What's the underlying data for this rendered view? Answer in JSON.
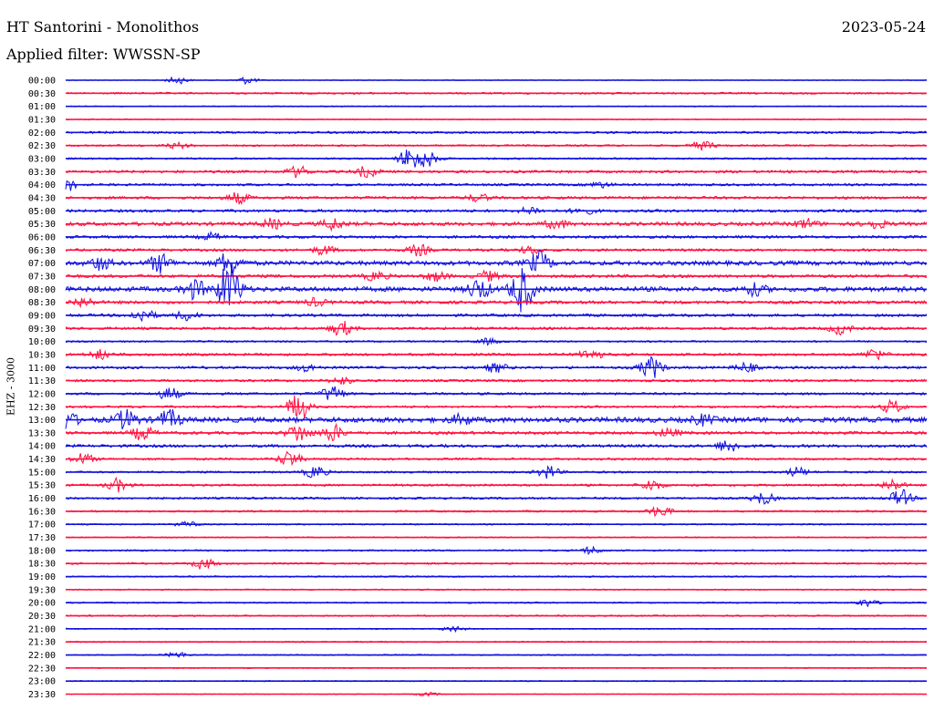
{
  "header": {
    "title": "HT Santorini - Monolithos",
    "date": "2023-05-24",
    "filter": "Applied filter: WWSSN-SP"
  },
  "axis": {
    "channel_label": "EHZ - 3000"
  },
  "colors": {
    "odd": "#1010e0",
    "even": "#ff1040",
    "background": "#ffffff"
  },
  "chart_data": {
    "type": "line",
    "title": "HT Santorini - Monolithos",
    "ylabel": "EHZ - 3000",
    "y_ticks": [
      "00:00",
      "00:30",
      "01:00",
      "01:30",
      "02:00",
      "02:30",
      "03:00",
      "03:30",
      "04:00",
      "04:30",
      "05:00",
      "05:30",
      "06:00",
      "06:30",
      "07:00",
      "07:30",
      "08:00",
      "08:30",
      "09:00",
      "09:30",
      "10:00",
      "10:30",
      "11:00",
      "11:30",
      "12:00",
      "12:30",
      "13:00",
      "13:30",
      "14:00",
      "14:30",
      "15:00",
      "15:30",
      "16:00",
      "16:30",
      "17:00",
      "17:30",
      "18:00",
      "18:30",
      "19:00",
      "19:30",
      "20:00",
      "20:30",
      "21:00",
      "21:30",
      "22:00",
      "22:30",
      "23:00",
      "23:30"
    ],
    "series": [
      {
        "label": "00:00",
        "noise": 0.4,
        "events": [
          [
            0.13,
            4
          ],
          [
            0.21,
            4
          ]
        ]
      },
      {
        "label": "00:30",
        "noise": 1.0,
        "events": []
      },
      {
        "label": "01:00",
        "noise": 0.6,
        "events": []
      },
      {
        "label": "01:30",
        "noise": 0.6,
        "events": []
      },
      {
        "label": "02:00",
        "noise": 1.2,
        "events": []
      },
      {
        "label": "02:30",
        "noise": 1.0,
        "events": [
          [
            0.13,
            3
          ],
          [
            0.74,
            5
          ]
        ]
      },
      {
        "label": "03:00",
        "noise": 1.0,
        "events": [
          [
            0.4,
            12
          ],
          [
            0.42,
            8
          ]
        ]
      },
      {
        "label": "03:30",
        "noise": 1.4,
        "events": [
          [
            0.27,
            6
          ],
          [
            0.35,
            6
          ]
        ]
      },
      {
        "label": "04:00",
        "noise": 1.3,
        "events": [
          [
            0.0,
            7
          ],
          [
            0.62,
            3
          ]
        ]
      },
      {
        "label": "04:30",
        "noise": 1.5,
        "events": [
          [
            0.2,
            6
          ],
          [
            0.48,
            4
          ]
        ]
      },
      {
        "label": "05:00",
        "noise": 1.5,
        "events": [
          [
            0.54,
            4
          ],
          [
            0.6,
            4
          ]
        ]
      },
      {
        "label": "05:30",
        "noise": 2.0,
        "events": [
          [
            0.24,
            5
          ],
          [
            0.31,
            6
          ],
          [
            0.57,
            5
          ],
          [
            0.86,
            5
          ],
          [
            0.94,
            5
          ]
        ]
      },
      {
        "label": "06:00",
        "noise": 1.5,
        "events": [
          [
            0.17,
            4
          ]
        ]
      },
      {
        "label": "06:30",
        "noise": 1.4,
        "events": [
          [
            0.3,
            5
          ],
          [
            0.41,
            6
          ],
          [
            0.54,
            4
          ]
        ]
      },
      {
        "label": "07:00",
        "noise": 2.4,
        "events": [
          [
            0.04,
            7
          ],
          [
            0.11,
            10
          ],
          [
            0.19,
            13
          ],
          [
            0.55,
            12
          ]
        ]
      },
      {
        "label": "07:30",
        "noise": 1.7,
        "events": [
          [
            0.36,
            5
          ],
          [
            0.43,
            5
          ],
          [
            0.49,
            5
          ]
        ]
      },
      {
        "label": "08:00",
        "noise": 2.6,
        "events": [
          [
            0.15,
            10
          ],
          [
            0.19,
            30
          ],
          [
            0.48,
            11
          ],
          [
            0.53,
            24
          ],
          [
            0.8,
            6
          ]
        ]
      },
      {
        "label": "08:30",
        "noise": 1.7,
        "events": [
          [
            0.02,
            5
          ],
          [
            0.29,
            4
          ]
        ]
      },
      {
        "label": "09:00",
        "noise": 1.5,
        "events": [
          [
            0.09,
            7
          ],
          [
            0.14,
            5
          ]
        ]
      },
      {
        "label": "09:30",
        "noise": 1.4,
        "events": [
          [
            0.32,
            8
          ],
          [
            0.9,
            6
          ]
        ]
      },
      {
        "label": "10:00",
        "noise": 1.0,
        "events": [
          [
            0.49,
            3
          ]
        ]
      },
      {
        "label": "10:30",
        "noise": 1.4,
        "events": [
          [
            0.04,
            5
          ],
          [
            0.61,
            6
          ],
          [
            0.94,
            6
          ]
        ]
      },
      {
        "label": "11:00",
        "noise": 1.4,
        "events": [
          [
            0.28,
            4
          ],
          [
            0.5,
            5
          ],
          [
            0.68,
            12
          ],
          [
            0.79,
            5
          ]
        ]
      },
      {
        "label": "11:30",
        "noise": 1.3,
        "events": [
          [
            0.32,
            4
          ]
        ]
      },
      {
        "label": "12:00",
        "noise": 1.3,
        "events": [
          [
            0.12,
            7
          ],
          [
            0.31,
            9
          ]
        ]
      },
      {
        "label": "12:30",
        "noise": 1.2,
        "events": [
          [
            0.27,
            15
          ],
          [
            0.96,
            7
          ]
        ]
      },
      {
        "label": "13:00",
        "noise": 2.8,
        "events": [
          [
            0.0,
            9
          ],
          [
            0.07,
            10
          ],
          [
            0.12,
            10
          ],
          [
            0.46,
            5
          ],
          [
            0.74,
            5
          ]
        ]
      },
      {
        "label": "13:30",
        "noise": 1.6,
        "events": [
          [
            0.09,
            8
          ],
          [
            0.27,
            10
          ],
          [
            0.31,
            9
          ],
          [
            0.7,
            5
          ]
        ]
      },
      {
        "label": "14:00",
        "noise": 1.6,
        "events": [
          [
            0.77,
            7
          ]
        ]
      },
      {
        "label": "14:30",
        "noise": 1.2,
        "events": [
          [
            0.02,
            6
          ],
          [
            0.26,
            9
          ]
        ]
      },
      {
        "label": "15:00",
        "noise": 1.1,
        "events": [
          [
            0.29,
            7
          ],
          [
            0.56,
            7
          ],
          [
            0.85,
            5
          ]
        ]
      },
      {
        "label": "15:30",
        "noise": 1.2,
        "events": [
          [
            0.06,
            7
          ],
          [
            0.68,
            6
          ],
          [
            0.96,
            6
          ]
        ]
      },
      {
        "label": "16:00",
        "noise": 1.2,
        "events": [
          [
            0.81,
            7
          ],
          [
            0.97,
            9
          ]
        ]
      },
      {
        "label": "16:30",
        "noise": 1.0,
        "events": [
          [
            0.69,
            6
          ]
        ]
      },
      {
        "label": "17:00",
        "noise": 0.8,
        "events": [
          [
            0.14,
            3
          ]
        ]
      },
      {
        "label": "17:30",
        "noise": 0.7,
        "events": []
      },
      {
        "label": "18:00",
        "noise": 0.9,
        "events": [
          [
            0.61,
            4
          ]
        ]
      },
      {
        "label": "18:30",
        "noise": 1.0,
        "events": [
          [
            0.16,
            6
          ]
        ]
      },
      {
        "label": "19:00",
        "noise": 0.8,
        "events": []
      },
      {
        "label": "19:30",
        "noise": 0.7,
        "events": []
      },
      {
        "label": "20:00",
        "noise": 0.8,
        "events": [
          [
            0.93,
            4
          ]
        ]
      },
      {
        "label": "20:30",
        "noise": 0.8,
        "events": []
      },
      {
        "label": "21:00",
        "noise": 0.6,
        "events": [
          [
            0.45,
            3
          ]
        ]
      },
      {
        "label": "21:30",
        "noise": 0.7,
        "events": []
      },
      {
        "label": "22:00",
        "noise": 0.7,
        "events": [
          [
            0.13,
            3
          ]
        ]
      },
      {
        "label": "22:30",
        "noise": 0.6,
        "events": []
      },
      {
        "label": "23:00",
        "noise": 0.6,
        "events": []
      },
      {
        "label": "23:30",
        "noise": 0.4,
        "events": [
          [
            0.42,
            2
          ]
        ]
      }
    ]
  }
}
